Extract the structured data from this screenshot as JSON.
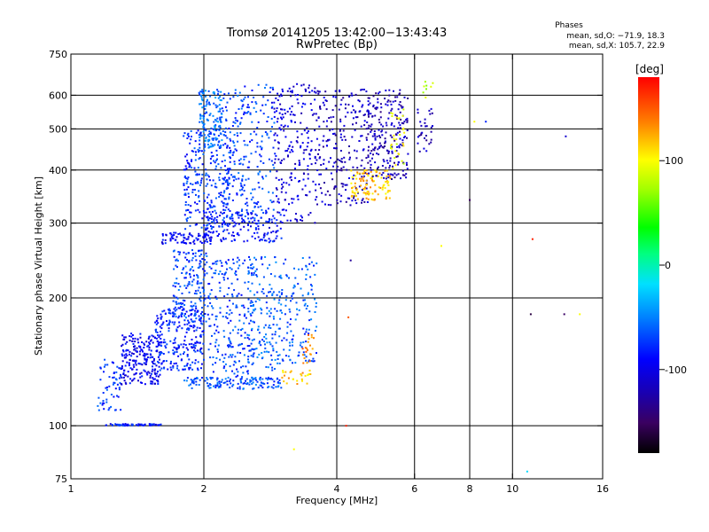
{
  "chart_data": {
    "type": "scatter",
    "title": "Tromsø 20141205 13:42:00−13:43:43",
    "subtitle": "RwPretec (Bp)",
    "xlabel": "Frequency [MHz]",
    "ylabel": "Stationary phase Virtual Height [km]",
    "x_scale": "log",
    "y_scale": "log",
    "xlim": [
      1,
      16
    ],
    "ylim": [
      75,
      750
    ],
    "x_ticks": [
      1,
      2,
      4,
      6,
      8,
      10,
      16
    ],
    "y_ticks": [
      75,
      100,
      200,
      300,
      400,
      500,
      600,
      750
    ],
    "x_grid": [
      2,
      4,
      6,
      8,
      10
    ],
    "y_grid": [
      100,
      200,
      300,
      400,
      500,
      600
    ],
    "grid": true,
    "phases_box": {
      "title": "Phases",
      "line1": "mean, sd,O: −71.9, 18.3",
      "line2": "mean, sd,X: 105.7, 22.9"
    },
    "colorbar": {
      "label": "[deg]",
      "range": [
        -180,
        180
      ],
      "ticks": [
        100,
        0,
        -100
      ],
      "colormap": "rainbow"
    },
    "traces": [
      {
        "x": [
          1.2,
          1.6
        ],
        "y": [
          100,
          101
        ],
        "phase": -85,
        "count": 60
      },
      {
        "x": [
          1.15,
          1.3
        ],
        "y": [
          108,
          145
        ],
        "phase": -75,
        "count": 60
      },
      {
        "x": [
          1.3,
          1.6
        ],
        "y": [
          125,
          165
        ],
        "phase": -95,
        "count": 220
      },
      {
        "x": [
          1.55,
          2.0
        ],
        "y": [
          135,
          190
        ],
        "phase": -80,
        "count": 240
      },
      {
        "x": [
          1.7,
          2.05
        ],
        "y": [
          175,
          260
        ],
        "phase": -70,
        "count": 180
      },
      {
        "x": [
          1.8,
          3.0
        ],
        "y": [
          122,
          130
        ],
        "phase": -65,
        "count": 140
      },
      {
        "x": [
          2.05,
          2.6
        ],
        "y": [
          130,
          250
        ],
        "phase": -70,
        "count": 220
      },
      {
        "x": [
          2.5,
          3.0
        ],
        "y": [
          135,
          250
        ],
        "phase": -60,
        "count": 160
      },
      {
        "x": [
          3.0,
          3.6
        ],
        "y": [
          140,
          250
        ],
        "phase": -65,
        "count": 120
      },
      {
        "x": [
          3.0,
          3.5
        ],
        "y": [
          125,
          135
        ],
        "phase": 120,
        "count": 25
      },
      {
        "x": [
          3.35,
          3.6
        ],
        "y": [
          140,
          165
        ],
        "phase": 140,
        "count": 20
      },
      {
        "x": [
          1.6,
          2.1
        ],
        "y": [
          268,
          285
        ],
        "phase": -95,
        "count": 80
      },
      {
        "x": [
          2.0,
          3.0
        ],
        "y": [
          270,
          320
        ],
        "phase": -90,
        "count": 150
      },
      {
        "x": [
          1.8,
          2.3
        ],
        "y": [
          290,
          500
        ],
        "phase": -75,
        "count": 260
      },
      {
        "x": [
          1.95,
          2.2
        ],
        "y": [
          450,
          620
        ],
        "phase": -55,
        "count": 150
      },
      {
        "x": [
          2.2,
          2.9
        ],
        "y": [
          300,
          640
        ],
        "phase": -70,
        "count": 260
      },
      {
        "x": [
          2.85,
          3.6
        ],
        "y": [
          300,
          640
        ],
        "phase": -105,
        "count": 220
      },
      {
        "x": [
          3.6,
          4.7
        ],
        "y": [
          330,
          620
        ],
        "phase": -115,
        "count": 220
      },
      {
        "x": [
          4.3,
          5.3
        ],
        "y": [
          340,
          400
        ],
        "phase": 120,
        "count": 110
      },
      {
        "x": [
          4.7,
          5.8
        ],
        "y": [
          380,
          620
        ],
        "phase": -120,
        "count": 220
      },
      {
        "x": [
          5.3,
          5.7
        ],
        "y": [
          400,
          560
        ],
        "phase": 95,
        "count": 30
      },
      {
        "x": [
          6.1,
          6.6
        ],
        "y": [
          440,
          560
        ],
        "phase": -120,
        "count": 30
      },
      {
        "x": [
          6.2,
          6.6
        ],
        "y": [
          590,
          650
        ],
        "phase": 75,
        "count": 8
      }
    ],
    "isolated_points": [
      {
        "x": 13.2,
        "y": 480,
        "phase": -110
      },
      {
        "x": 8.2,
        "y": 520,
        "phase": 100
      },
      {
        "x": 8.7,
        "y": 520,
        "phase": -80
      },
      {
        "x": 8.0,
        "y": 340,
        "phase": -150
      },
      {
        "x": 11.1,
        "y": 275,
        "phase": 170
      },
      {
        "x": 6.9,
        "y": 265,
        "phase": 100
      },
      {
        "x": 11.0,
        "y": 183,
        "phase": -160
      },
      {
        "x": 14.2,
        "y": 183,
        "phase": 100
      },
      {
        "x": 13.1,
        "y": 183,
        "phase": -150
      },
      {
        "x": 4.2,
        "y": 100,
        "phase": 170
      },
      {
        "x": 4.3,
        "y": 245,
        "phase": -130
      },
      {
        "x": 10.8,
        "y": 78,
        "phase": -20
      },
      {
        "x": 3.2,
        "y": 88,
        "phase": 100
      },
      {
        "x": 4.25,
        "y": 180,
        "phase": 150
      }
    ]
  }
}
